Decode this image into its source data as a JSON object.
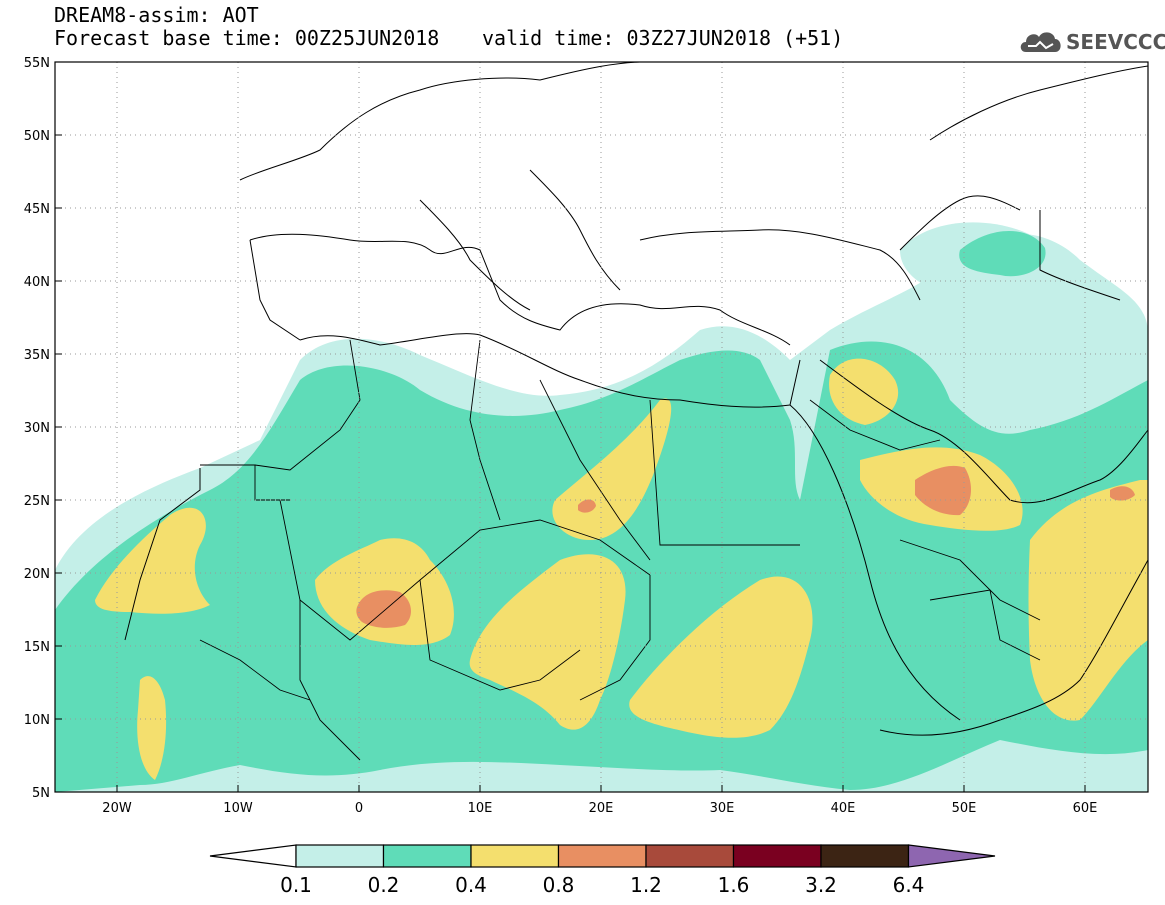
{
  "header": {
    "title": "DREAM8-assim: AOT",
    "base_time": "Forecast base time: 00Z25JUN2018",
    "valid_time": "valid time: 03Z27JUN2018 (+51)",
    "logo_text": "SEEVCCC"
  },
  "map": {
    "lon_range": [
      -25,
      65
    ],
    "lat_range": [
      5,
      55
    ],
    "lat_labels": [
      "55N",
      "50N",
      "45N",
      "40N",
      "35N",
      "30N",
      "25N",
      "20N",
      "15N",
      "10N",
      "5N"
    ],
    "lon_labels": [
      "20W",
      "10W",
      "0",
      "10E",
      "20E",
      "30E",
      "40E",
      "50E",
      "60E"
    ],
    "gridlines": "dotted"
  },
  "colorbar": {
    "levels": [
      "0.1",
      "0.2",
      "0.4",
      "0.8",
      "1.2",
      "1.6",
      "3.2",
      "6.4"
    ],
    "colors": [
      "#ffffff",
      "#c4efe8",
      "#5fdcb8",
      "#f4df6e",
      "#e88f62",
      "#a84a3b",
      "#7a0020",
      "#3c2414",
      "#8e66b0"
    ]
  }
}
